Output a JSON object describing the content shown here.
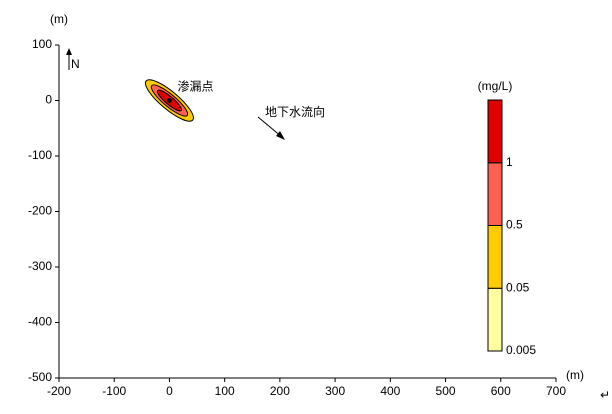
{
  "chart_data": {
    "type": "contour",
    "x_unit": "(m)",
    "y_unit": "(m)",
    "xlim": [
      -200,
      700
    ],
    "xticks": [
      -200,
      -100,
      0,
      100,
      200,
      300,
      400,
      500,
      600,
      700
    ],
    "ylim": [
      -500,
      100
    ],
    "yticks": [
      -500,
      -400,
      -300,
      -200,
      -100,
      0,
      100
    ],
    "north_label": "N",
    "source": {
      "label": "渗漏点",
      "x": 0,
      "y": 0
    },
    "flow_label": "地下水流向",
    "contours": [
      {
        "level": 0.05,
        "center": [
          0,
          0
        ],
        "semi_axes": [
          55,
          16
        ],
        "angle": -40
      },
      {
        "level": 0.5,
        "center": [
          0,
          0
        ],
        "semi_axes": [
          42,
          11
        ],
        "angle": -40
      },
      {
        "level": 1,
        "center": [
          0,
          0
        ],
        "semi_axes": [
          28,
          7
        ],
        "angle": -40
      }
    ],
    "colorbar": {
      "label": "(mg/L)",
      "levels": [
        0.005,
        0.05,
        0.5,
        1
      ],
      "colors": [
        "#ffffa0",
        "#ffcc00",
        "#ff6050",
        "#e00000"
      ]
    },
    "end_mark": "↵"
  }
}
